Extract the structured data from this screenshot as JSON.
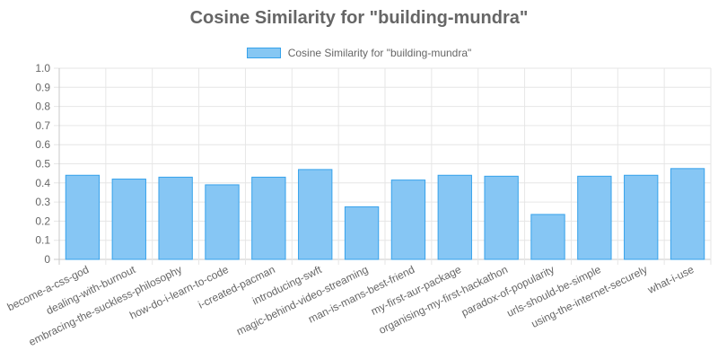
{
  "chart_data": {
    "type": "bar",
    "title": "Cosine Similarity for \"building-mundra\"",
    "xlabel": "",
    "ylabel": "",
    "ylim": [
      0,
      1.0
    ],
    "yticks": [
      "0",
      "0.1",
      "0.2",
      "0.3",
      "0.4",
      "0.5",
      "0.6",
      "0.7",
      "0.8",
      "0.9",
      "1.0"
    ],
    "grid": true,
    "legend_position": "top",
    "categories": [
      "become-a-css-god",
      "dealing-with-burnout",
      "embracing-the-suckless-philosophy",
      "how-do-i-learn-to-code",
      "i-created-pacman",
      "introducing-swft",
      "magic-behind-video-streaming",
      "man-is-mans-best-friend",
      "my-first-aur-package",
      "organising-my-first-hackathon",
      "paradox-of-popularity",
      "urls-should-be-simple",
      "using-the-internet-securely",
      "what-i-use"
    ],
    "series": [
      {
        "name": "Cosine Similarity for \"building-mundra\"",
        "values": [
          0.44,
          0.42,
          0.43,
          0.39,
          0.43,
          0.47,
          0.275,
          0.415,
          0.44,
          0.435,
          0.235,
          0.435,
          0.44,
          0.475
        ],
        "fill_color": "#86c6f4",
        "border_color": "#36a2eb"
      }
    ]
  }
}
